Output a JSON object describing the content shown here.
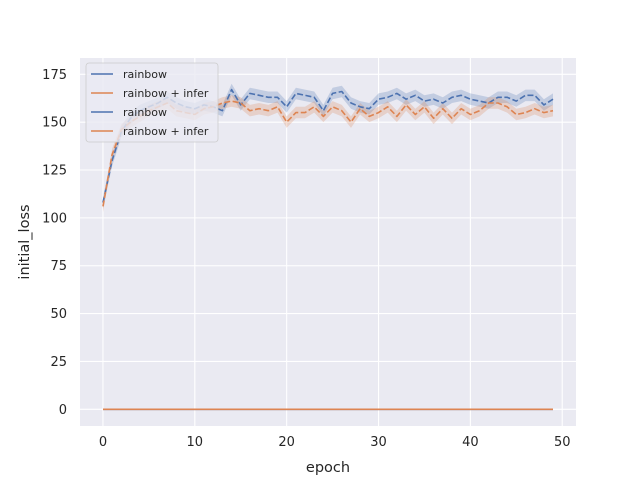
{
  "chart_data": {
    "type": "line",
    "title": "",
    "xlabel": "epoch",
    "ylabel": "initial_loss",
    "xlim": [
      -2.5,
      51.5
    ],
    "ylim": [
      -8.7,
      183.5
    ],
    "xticks": [
      "0",
      "10",
      "20",
      "30",
      "40",
      "50"
    ],
    "yticks": [
      "0",
      "25",
      "50",
      "75",
      "100",
      "125",
      "150",
      "175"
    ],
    "xtick_values": [
      0,
      10,
      20,
      30,
      40,
      50
    ],
    "ytick_values": [
      0,
      25,
      50,
      75,
      100,
      125,
      150,
      175
    ],
    "grid": true,
    "legend_position": "upper-left",
    "legend": [
      {
        "label": "rainbow",
        "color": "#4c72b0"
      },
      {
        "label": "rainbow + infer",
        "color": "#dd8452"
      },
      {
        "label": "rainbow",
        "color": "#4c72b0"
      },
      {
        "label": "rainbow + infer",
        "color": "#dd8452"
      }
    ],
    "x": [
      0,
      1,
      2,
      3,
      4,
      5,
      6,
      7,
      8,
      9,
      10,
      11,
      12,
      13,
      14,
      15,
      16,
      17,
      18,
      19,
      20,
      21,
      22,
      23,
      24,
      25,
      26,
      27,
      28,
      29,
      30,
      31,
      32,
      33,
      34,
      35,
      36,
      37,
      38,
      39,
      40,
      41,
      42,
      43,
      44,
      45,
      46,
      47,
      48,
      49
    ],
    "series": [
      {
        "color": "#4c72b0",
        "style": "dashed",
        "values": [
          108,
          130,
          145,
          152,
          156,
          158,
          160,
          163,
          160,
          158,
          157,
          159,
          158,
          156,
          167,
          159,
          165,
          164,
          163,
          163,
          158,
          165,
          164,
          163,
          156,
          165,
          166,
          160,
          158,
          157,
          162,
          163,
          165,
          162,
          164,
          161,
          162,
          160,
          163,
          164,
          162,
          161,
          160,
          163,
          163,
          161,
          164,
          164,
          159,
          162
        ],
        "band_halfwidth": 3
      },
      {
        "color": "#dd8452",
        "style": "dashed",
        "values": [
          106,
          133,
          146,
          150,
          153,
          156,
          158,
          160,
          156,
          155,
          154,
          157,
          158,
          160,
          161,
          160,
          156,
          157,
          156,
          158,
          150,
          155,
          155,
          158,
          153,
          158,
          156,
          150,
          157,
          153,
          155,
          158,
          153,
          159,
          154,
          158,
          152,
          157,
          152,
          157,
          154,
          156,
          160,
          160,
          158,
          154,
          155,
          157,
          155,
          156
        ],
        "band_halfwidth": 3
      },
      {
        "color": "#4c72b0",
        "style": "solid",
        "values": [
          0,
          0,
          0,
          0,
          0,
          0,
          0,
          0,
          0,
          0,
          0,
          0,
          0,
          0,
          0,
          0,
          0,
          0,
          0,
          0,
          0,
          0,
          0,
          0,
          0,
          0,
          0,
          0,
          0,
          0,
          0,
          0,
          0,
          0,
          0,
          0,
          0,
          0,
          0,
          0,
          0,
          0,
          0,
          0,
          0,
          0,
          0,
          0,
          0,
          0
        ]
      },
      {
        "color": "#dd8452",
        "style": "solid",
        "values": [
          0,
          0,
          0,
          0,
          0,
          0,
          0,
          0,
          0,
          0,
          0,
          0,
          0,
          0,
          0,
          0,
          0,
          0,
          0,
          0,
          0,
          0,
          0,
          0,
          0,
          0,
          0,
          0,
          0,
          0,
          0,
          0,
          0,
          0,
          0,
          0,
          0,
          0,
          0,
          0,
          0,
          0,
          0,
          0,
          0,
          0,
          0,
          0,
          0,
          0
        ]
      }
    ]
  }
}
